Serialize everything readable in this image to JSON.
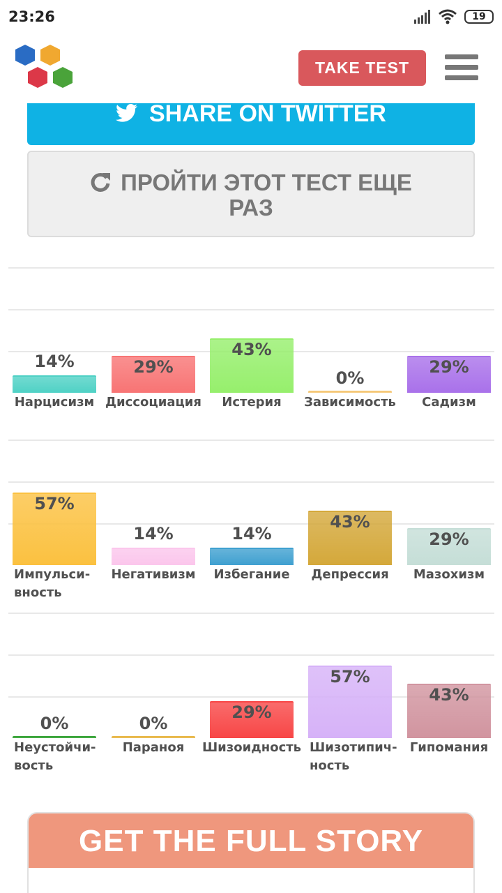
{
  "status_bar": {
    "time": "23:26",
    "battery": "19"
  },
  "header": {
    "take_test_label": "TAKE TEST"
  },
  "buttons": {
    "share_twitter": "SHARE ON TWITTER",
    "retake_line1": "ПРОЙТИ ЭТОТ ТЕСТ ЕЩЕ",
    "retake_line2": "РАЗ"
  },
  "chart_data": [
    {
      "type": "bar",
      "categories": [
        "Нарцисизм",
        "Диссоциация",
        "Истерия",
        "Зависимость",
        "Садизм"
      ],
      "values": [
        14,
        29,
        43,
        0,
        29
      ],
      "value_labels": [
        "14%",
        "29%",
        "43%",
        "0%",
        "29%"
      ],
      "colors": [
        "#4fd1c5",
        "#f87474",
        "#96ef6c",
        "#f5c878",
        "#a971ea"
      ]
    },
    {
      "type": "bar",
      "categories": [
        "Импульси-вность",
        "Негативизм",
        "Избегание",
        "Депрессия",
        "Мазохизм"
      ],
      "values": [
        57,
        14,
        14,
        43,
        29
      ],
      "value_labels": [
        "57%",
        "14%",
        "14%",
        "43%",
        "29%"
      ],
      "colors": [
        "#fbc140",
        "#fbc6ec",
        "#3fa0d0",
        "#d4a83a",
        "#c5ded7"
      ]
    },
    {
      "type": "bar",
      "categories": [
        "Неустойчи-вость",
        "Параноя",
        "Шизоидность",
        "Шизотипич-ность",
        "Гипомания"
      ],
      "values": [
        0,
        0,
        29,
        57,
        43
      ],
      "value_labels": [
        "0%",
        "0%",
        "29%",
        "57%",
        "43%"
      ],
      "colors": [
        "#3aa53a",
        "#e8b84a",
        "#f84646",
        "#d6b2f8",
        "#d1949f"
      ]
    }
  ],
  "full_story": {
    "title": "GET THE FULL STORY"
  }
}
